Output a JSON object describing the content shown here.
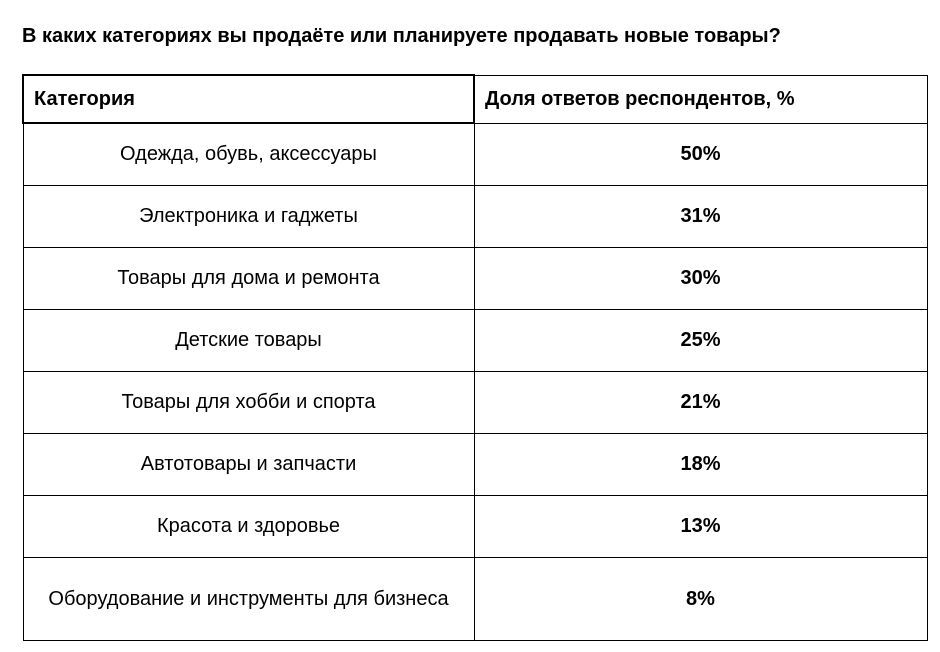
{
  "title": "В каких категориях вы продаёте или планируете продавать новые товары?",
  "table": {
    "headers": [
      "Категория",
      "Доля ответов респондентов, %"
    ],
    "rows": [
      {
        "category": "Одежда, обувь, аксессуары",
        "share": "50%"
      },
      {
        "category": "Электроника и гаджеты",
        "share": "31%"
      },
      {
        "category": "Товары для дома и ремонта",
        "share": "30%"
      },
      {
        "category": "Детские товары",
        "share": "25%"
      },
      {
        "category": "Товары для хобби и спорта",
        "share": "21%"
      },
      {
        "category": "Автотовары и запчасти",
        "share": "18%"
      },
      {
        "category": "Красота и здоровье",
        "share": "13%"
      },
      {
        "category": "Оборудование и инструменты для бизнеса",
        "share": "8%"
      }
    ]
  }
}
